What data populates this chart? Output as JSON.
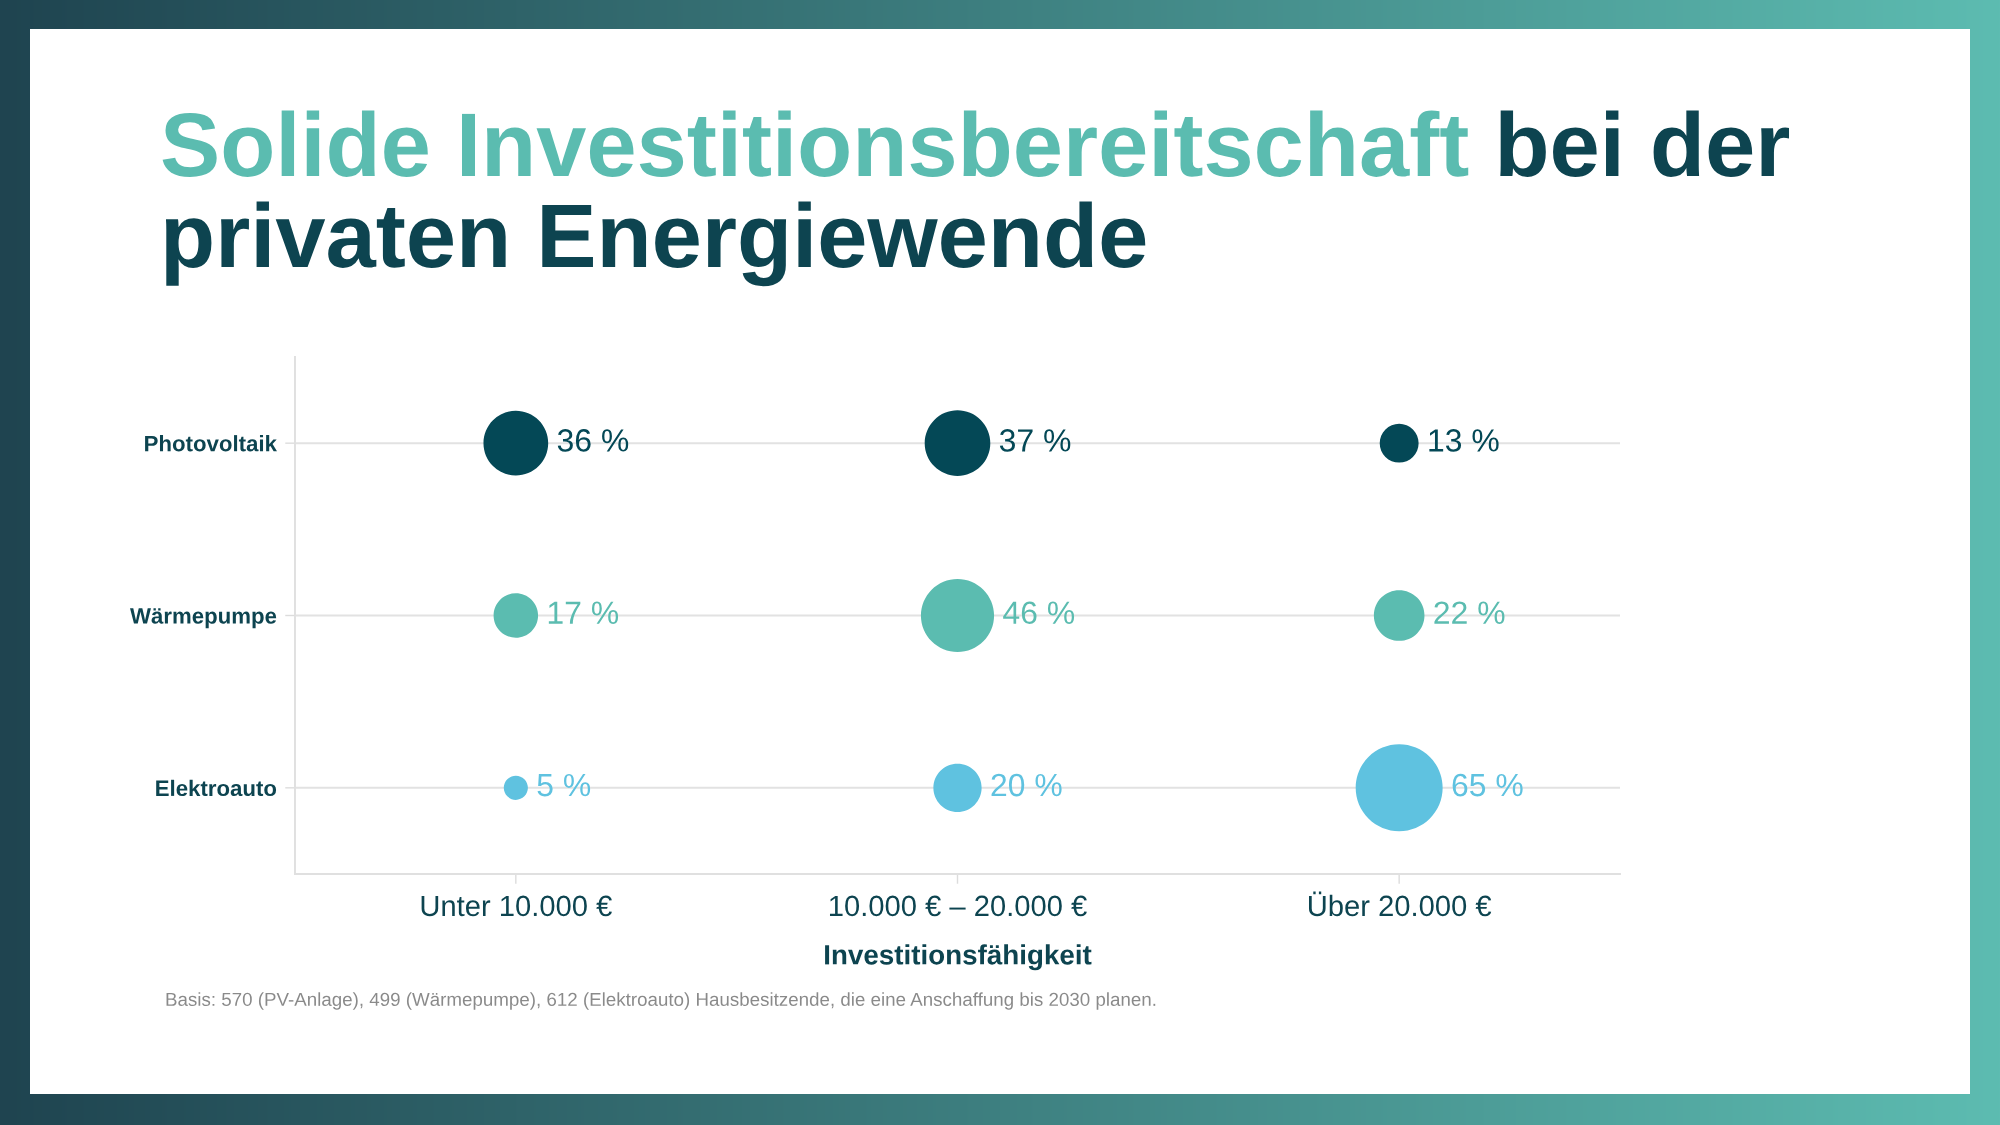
{
  "chart_data": {
    "type": "other",
    "title": [
      "Solide Investitionsbereitschaft",
      "bei der",
      "privaten Energiewende"
    ],
    "categories": [
      "Unter 10.000 €",
      "10.000 € – 20.000 €",
      "Über 20.000 €"
    ],
    "y_categories": [
      "Photovoltaik",
      "Wärmepumpe",
      "Elektroauto"
    ],
    "series": [
      {
        "color": "#044856",
        "values": [
          36,
          37,
          13
        ],
        "value_labels": [
          "36 %",
          "37 %",
          "13 %"
        ]
      },
      {
        "color": "#5bbcb0",
        "values": [
          17,
          46,
          22
        ],
        "value_labels": [
          "17 %",
          "46 %",
          "22 %"
        ]
      },
      {
        "color": "#5fc2e0",
        "values": [
          5,
          20,
          65
        ],
        "value_labels": [
          "5 %",
          "20 %",
          "65 %"
        ]
      }
    ],
    "xlabel": "Investitionsfähigkeit",
    "annotations": [
      "Basis: 570 (PV-Anlage), 499 (Wärmepumpe), 612 (Elektroauto) Hausbesitzende, die eine Anschaffung bis 2030 planen."
    ]
  }
}
